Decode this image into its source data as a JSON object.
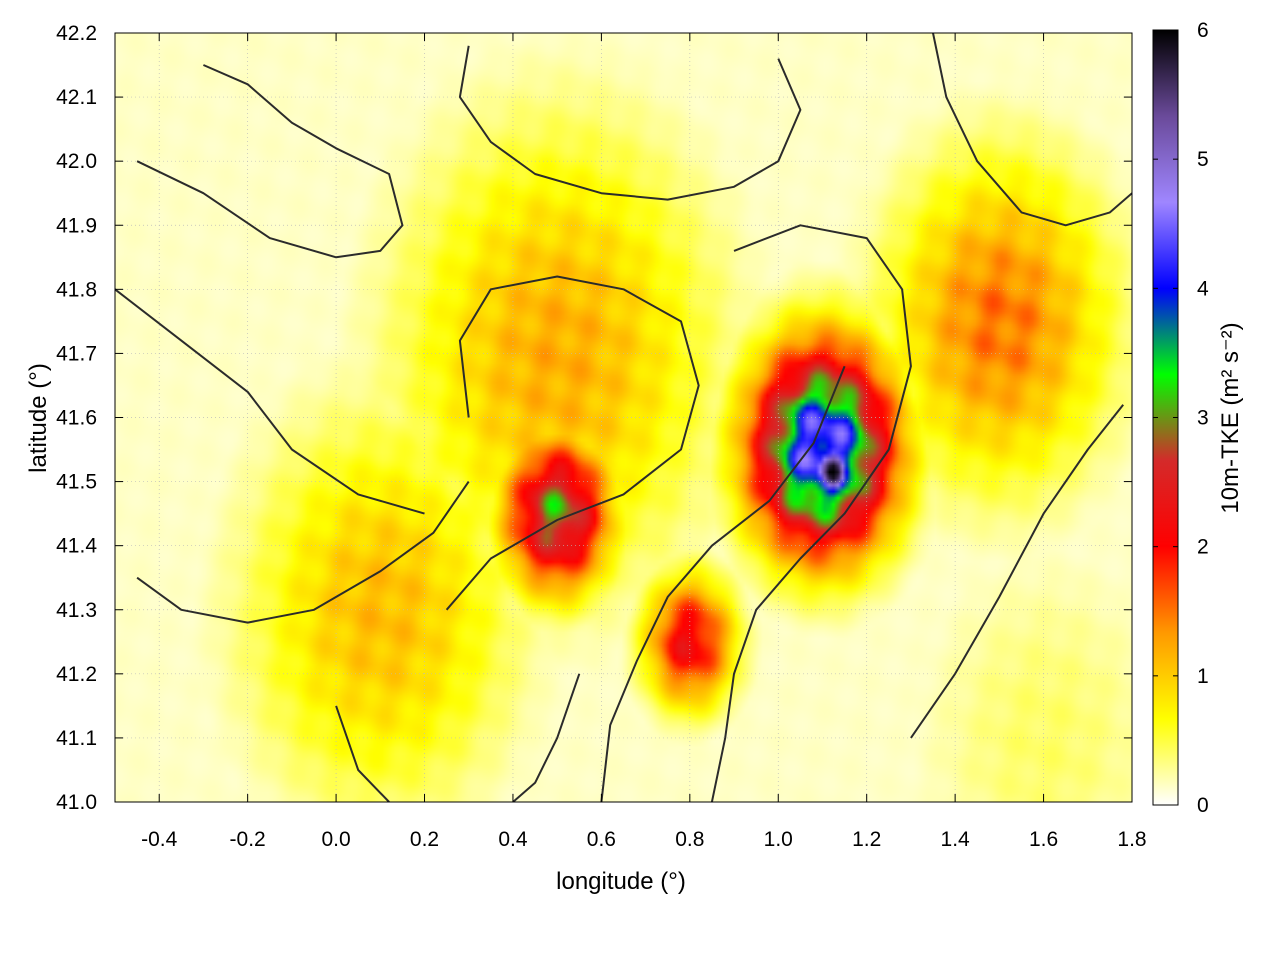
{
  "chart_data": {
    "type": "heatmap",
    "title": "",
    "xlabel": "longitude (°)",
    "ylabel": "latitude (°)",
    "xlim": [
      -0.5,
      1.8
    ],
    "ylim": [
      41.0,
      42.2
    ],
    "xticks": [
      -0.4,
      -0.2,
      0.0,
      0.2,
      0.4,
      0.6,
      0.8,
      1.0,
      1.2,
      1.4,
      1.6,
      1.8
    ],
    "xtick_labels": [
      "-0.4",
      "-0.2",
      "0.0",
      "0.2",
      "0.4",
      "0.6",
      "0.8",
      "1.0",
      "1.2",
      "1.4",
      "1.6",
      "1.8"
    ],
    "yticks": [
      41.0,
      41.1,
      41.2,
      41.3,
      41.4,
      41.5,
      41.6,
      41.7,
      41.8,
      41.9,
      42.0,
      42.1,
      42.2
    ],
    "ytick_labels": [
      "41.0",
      "41.1",
      "41.2",
      "41.3",
      "41.4",
      "41.5",
      "41.6",
      "41.7",
      "41.8",
      "41.9",
      "42.0",
      "42.1",
      "42.2"
    ],
    "grid": true,
    "colorbar": {
      "label": "10m-TKE (m² s⁻²)",
      "min": 0,
      "max": 6,
      "ticks": [
        0,
        1,
        2,
        3,
        4,
        5,
        6
      ],
      "tick_labels": [
        "0",
        "1",
        "2",
        "3",
        "4",
        "5",
        "6"
      ],
      "colors": [
        "#ffffff",
        "#ffff00",
        "#ff9900",
        "#ff0000",
        "#d42a2a",
        "#00ff00",
        "#0000ff",
        "#9f86ff",
        "#6a4a9a",
        "#000000"
      ]
    },
    "field_features": [
      {
        "lon": 1.1,
        "lat": 41.55,
        "value": 4.5,
        "spread": 0.16
      },
      {
        "lon": 1.12,
        "lat": 41.52,
        "value": 5.5,
        "spread": 0.06
      },
      {
        "lon": 0.5,
        "lat": 41.45,
        "value": 3.0,
        "spread": 0.12
      },
      {
        "lon": 0.5,
        "lat": 41.7,
        "value": 1.2,
        "spread": 0.35
      },
      {
        "lon": 0.1,
        "lat": 41.3,
        "value": 1.1,
        "spread": 0.3
      },
      {
        "lon": 1.5,
        "lat": 41.75,
        "value": 1.5,
        "spread": 0.25
      },
      {
        "lon": 0.8,
        "lat": 41.25,
        "value": 2.2,
        "spread": 0.1
      },
      {
        "lon": 1.6,
        "lat": 41.1,
        "value": 0.4,
        "spread": 0.3
      },
      {
        "lon": -0.3,
        "lat": 41.9,
        "value": 0.05,
        "spread": 0.4
      }
    ],
    "contours": [
      [
        [
          -0.45,
          41.35
        ],
        [
          -0.35,
          41.3
        ],
        [
          -0.2,
          41.28
        ],
        [
          -0.05,
          41.3
        ],
        [
          0.1,
          41.36
        ],
        [
          0.22,
          41.42
        ],
        [
          0.3,
          41.5
        ]
      ],
      [
        [
          -0.5,
          41.8
        ],
        [
          -0.35,
          41.72
        ],
        [
          -0.2,
          41.64
        ],
        [
          -0.1,
          41.55
        ],
        [
          0.05,
          41.48
        ],
        [
          0.2,
          41.45
        ]
      ],
      [
        [
          -0.45,
          42.0
        ],
        [
          -0.3,
          41.95
        ],
        [
          -0.15,
          41.88
        ],
        [
          0.0,
          41.85
        ],
        [
          0.1,
          41.86
        ],
        [
          0.15,
          41.9
        ],
        [
          0.12,
          41.98
        ],
        [
          0.0,
          42.02
        ],
        [
          -0.1,
          42.06
        ],
        [
          -0.2,
          42.12
        ],
        [
          -0.3,
          42.15
        ]
      ],
      [
        [
          0.3,
          42.18
        ],
        [
          0.28,
          42.1
        ],
        [
          0.35,
          42.03
        ],
        [
          0.45,
          41.98
        ],
        [
          0.6,
          41.95
        ],
        [
          0.75,
          41.94
        ],
        [
          0.9,
          41.96
        ],
        [
          1.0,
          42.0
        ],
        [
          1.05,
          42.08
        ],
        [
          1.0,
          42.16
        ]
      ],
      [
        [
          0.25,
          41.3
        ],
        [
          0.35,
          41.38
        ],
        [
          0.5,
          41.44
        ],
        [
          0.65,
          41.48
        ],
        [
          0.78,
          41.55
        ],
        [
          0.82,
          41.65
        ],
        [
          0.78,
          41.75
        ],
        [
          0.65,
          41.8
        ],
        [
          0.5,
          41.82
        ],
        [
          0.35,
          41.8
        ],
        [
          0.28,
          41.72
        ],
        [
          0.3,
          41.6
        ]
      ],
      [
        [
          0.85,
          41.0
        ],
        [
          0.88,
          41.1
        ],
        [
          0.9,
          41.2
        ],
        [
          0.95,
          41.3
        ],
        [
          1.05,
          41.38
        ],
        [
          1.15,
          41.45
        ],
        [
          1.25,
          41.55
        ],
        [
          1.3,
          41.68
        ],
        [
          1.28,
          41.8
        ],
        [
          1.2,
          41.88
        ],
        [
          1.05,
          41.9
        ],
        [
          0.9,
          41.86
        ]
      ],
      [
        [
          0.6,
          41.0
        ],
        [
          0.62,
          41.12
        ],
        [
          0.68,
          41.22
        ],
        [
          0.75,
          41.32
        ],
        [
          0.85,
          41.4
        ],
        [
          0.98,
          41.47
        ],
        [
          1.08,
          41.56
        ],
        [
          1.15,
          41.68
        ]
      ],
      [
        [
          1.3,
          41.1
        ],
        [
          1.4,
          41.2
        ],
        [
          1.5,
          41.32
        ],
        [
          1.6,
          41.45
        ],
        [
          1.7,
          41.55
        ],
        [
          1.78,
          41.62
        ]
      ],
      [
        [
          1.35,
          42.2
        ],
        [
          1.38,
          42.1
        ],
        [
          1.45,
          42.0
        ],
        [
          1.55,
          41.92
        ],
        [
          1.65,
          41.9
        ],
        [
          1.75,
          41.92
        ],
        [
          1.8,
          41.95
        ]
      ],
      [
        [
          0.55,
          41.2
        ],
        [
          0.5,
          41.1
        ],
        [
          0.45,
          41.03
        ],
        [
          0.4,
          41.0
        ]
      ],
      [
        [
          0.0,
          41.15
        ],
        [
          0.05,
          41.05
        ],
        [
          0.12,
          41.0
        ]
      ]
    ]
  }
}
